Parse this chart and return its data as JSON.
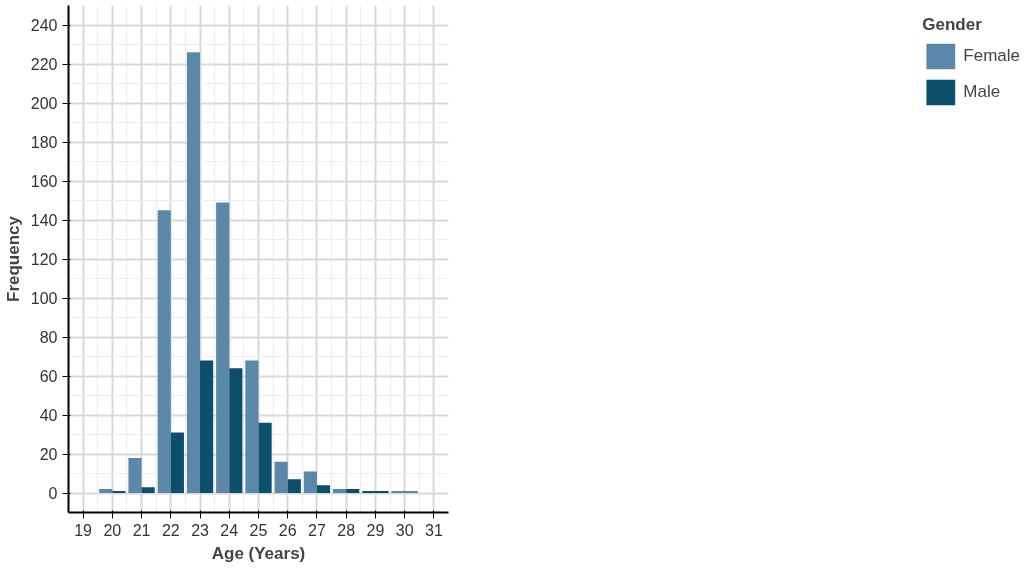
{
  "chart_data": {
    "type": "bar",
    "xlabel": "Age (Years)",
    "ylabel": "Frequency",
    "legend_title": "Gender",
    "x": [
      20,
      21,
      22,
      23,
      24,
      25,
      26,
      27,
      28,
      29,
      30
    ],
    "series": [
      {
        "name": "Female",
        "color": "#5b88a8",
        "values": [
          2,
          18,
          145,
          226,
          149,
          68,
          16,
          11,
          2,
          null,
          1
        ]
      },
      {
        "name": "Male",
        "color": "#0b4f6c",
        "values": [
          1,
          3,
          31,
          68,
          64,
          36,
          7,
          4,
          2,
          1,
          null
        ]
      }
    ],
    "xlim": [
      18.5,
      31.5
    ],
    "xticks": [
      19,
      20,
      21,
      22,
      23,
      24,
      25,
      26,
      27,
      28,
      29,
      30,
      31
    ],
    "ylim": [
      -10,
      250
    ],
    "yticks": [
      0,
      20,
      40,
      60,
      80,
      100,
      120,
      140,
      160,
      180,
      200,
      220,
      240
    ],
    "grid": true,
    "legend": "right"
  }
}
